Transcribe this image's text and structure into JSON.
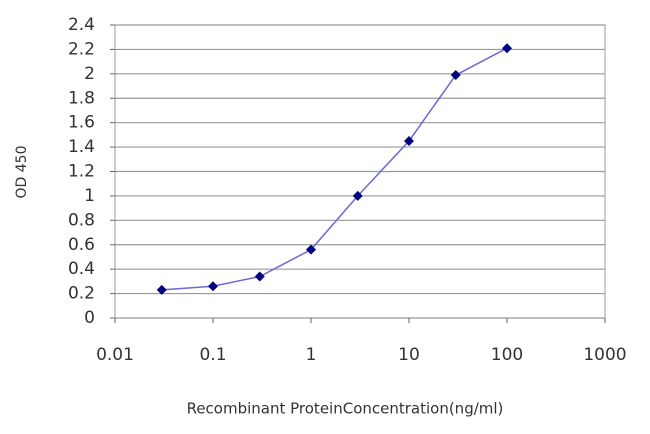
{
  "chart_data": {
    "type": "line",
    "x_label": "Recombinant ProteinConcentration(ng/ml)",
    "y_label": "OD 450",
    "x": [
      0.03,
      0.1,
      0.3,
      1,
      3,
      10,
      30,
      100
    ],
    "values": [
      0.23,
      0.26,
      0.34,
      0.56,
      1.0,
      1.45,
      1.99,
      2.21
    ],
    "color": "#6a6ad0",
    "marker_color": "#000080",
    "xlog": true,
    "xlim": [
      0.01,
      1000
    ],
    "xticks": [
      0.01,
      0.1,
      1,
      10,
      100,
      1000
    ],
    "ylim": [
      0,
      2.4
    ],
    "yticks": [
      0,
      0.2,
      0.4,
      0.6,
      0.8,
      1,
      1.2,
      1.4,
      1.6,
      1.8,
      2,
      2.2,
      2.4
    ],
    "grid": true
  }
}
